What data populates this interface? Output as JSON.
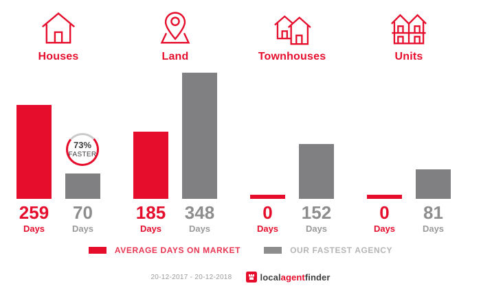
{
  "colors": {
    "accent_red": "#e60d2c",
    "bar_gray": "#808083",
    "number_gray": "#8d8d8d",
    "legend_gray_text": "#b5b5b5",
    "badge_ring_gray": "#cacaca",
    "badge_text": "#3d3d3d",
    "footer_text_gray": "#9b9b9b"
  },
  "chart_data": {
    "type": "bar",
    "categories": [
      "Houses",
      "Land",
      "Townhouses",
      "Units"
    ],
    "series": [
      {
        "name": "AVERAGE DAYS ON MARKET",
        "color": "#e60d2c",
        "values": [
          259,
          185,
          0,
          0
        ]
      },
      {
        "name": "OUR FASTEST AGENCY",
        "color": "#808083",
        "values": [
          70,
          348,
          152,
          81
        ]
      }
    ],
    "unit_label": "Days",
    "ylim": [
      0,
      348
    ],
    "grid": false,
    "legend_position": "bottom",
    "annotations": [
      {
        "category": "Houses",
        "series": "OUR FASTEST AGENCY",
        "text": "73% FASTER"
      }
    ]
  },
  "groups": [
    {
      "label": "Houses",
      "icon": "house-icon",
      "avg": {
        "value": "259",
        "unit": "Days"
      },
      "fastest": {
        "value": "70",
        "unit": "Days"
      },
      "badge": {
        "percent": "73%",
        "text": "FASTER"
      }
    },
    {
      "label": "Land",
      "icon": "map-pin-icon",
      "avg": {
        "value": "185",
        "unit": "Days"
      },
      "fastest": {
        "value": "348",
        "unit": "Days"
      }
    },
    {
      "label": "Townhouses",
      "icon": "townhouses-icon",
      "avg": {
        "value": "0",
        "unit": "Days"
      },
      "fastest": {
        "value": "152",
        "unit": "Days"
      }
    },
    {
      "label": "Units",
      "icon": "units-icon",
      "avg": {
        "value": "0",
        "unit": "Days"
      },
      "fastest": {
        "value": "81",
        "unit": "Days"
      }
    }
  ],
  "legend": [
    {
      "label": "AVERAGE DAYS ON MARKET",
      "color": "#e60d2c"
    },
    {
      "label": "OUR FASTEST AGENCY",
      "color": "#8d8d8d"
    }
  ],
  "footer": {
    "date_range": "20-12-2017 - 20-12-2018",
    "logo": {
      "part1": "local",
      "part2": "agent",
      "part3": "finder"
    }
  }
}
